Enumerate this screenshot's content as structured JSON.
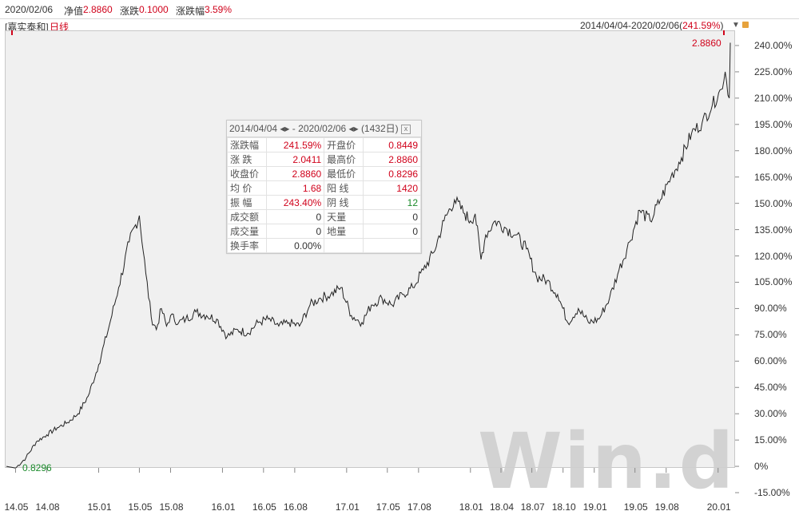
{
  "header": {
    "date": "2020/02/06",
    "nav_label": "净值",
    "nav_value": "2.8860",
    "change_label": "涨跌",
    "change_value": "0.1000",
    "pct_label": "涨跌幅",
    "pct_value": "3.59%"
  },
  "subheader": {
    "fund_name": "[嘉实泰和]",
    "period": "日线",
    "range_text": "2014/04/04-2020/02/06(",
    "range_pct": "241.59%",
    "range_close": ")"
  },
  "watermark": "Win.d",
  "popup": {
    "start": "2014/04/04",
    "end": "2020/02/06",
    "days": "(1432日)",
    "arrows": "◂▸",
    "dash": "-",
    "close_icon": "x",
    "rows": [
      {
        "l1": "涨跌幅",
        "v1": "241.59%",
        "c1": "red",
        "l2": "开盘价",
        "v2": "0.8449",
        "c2": "red"
      },
      {
        "l1": "涨 跌",
        "v1": "2.0411",
        "c1": "red",
        "l2": "最高价",
        "v2": "2.8860",
        "c2": "red"
      },
      {
        "l1": "收盘价",
        "v1": "2.8860",
        "c1": "red",
        "l2": "最低价",
        "v2": "0.8296",
        "c2": "red"
      },
      {
        "l1": "均 价",
        "v1": "1.68",
        "c1": "red",
        "l2": "阳 线",
        "v2": "1420",
        "c2": "red"
      },
      {
        "l1": "振 幅",
        "v1": "243.40%",
        "c1": "red",
        "l2": "阴 线",
        "v2": "12",
        "c2": "green"
      },
      {
        "l1": "成交额",
        "v1": "0",
        "c1": "plain",
        "l2": "天量",
        "v2": "0",
        "c2": "plain"
      },
      {
        "l1": "成交量",
        "v1": "0",
        "c1": "plain",
        "l2": "地量",
        "v2": "0",
        "c2": "plain"
      },
      {
        "l1": "换手率",
        "v1": "0.00%",
        "c1": "plain",
        "l2": "",
        "v2": "",
        "c2": "plain"
      }
    ]
  },
  "colors": {
    "up": "#d0021b",
    "down": "#1a8a2a",
    "line": "#222222",
    "plot_bg": "#f0f0f0"
  },
  "chart_data": {
    "type": "line",
    "title": "",
    "xlabel": "",
    "ylabel": "",
    "x_ticks": [
      "14.05",
      "14.08",
      "15.01",
      "15.05",
      "15.08",
      "16.01",
      "16.05",
      "16.08",
      "17.01",
      "17.05",
      "17.08",
      "18.01",
      "18.04",
      "18.07",
      "18.10",
      "19.01",
      "19.05",
      "19.08",
      "20.01"
    ],
    "y_ticks": [
      "240.00%",
      "225.00%",
      "210.00%",
      "195.00%",
      "180.00%",
      "165.00%",
      "150.00%",
      "135.00%",
      "120.00%",
      "105.00%",
      "90.00%",
      "75.00%",
      "60.00%",
      "45.00%",
      "30.00%",
      "15.00%",
      "0%",
      "-15.00%"
    ],
    "ylim": [
      -15,
      240
    ],
    "max_label": "2.8860",
    "min_label": "0.8296",
    "series": [
      {
        "x": [
          "2014-04-04",
          "2014-05-01",
          "2014-06-01",
          "2014-07-01",
          "2014-08-01",
          "2014-09-01",
          "2014-10-01",
          "2014-11-01",
          "2014-12-01",
          "2015-01-01",
          "2015-02-01",
          "2015-03-01",
          "2015-04-01",
          "2015-05-01",
          "2015-05-20",
          "2015-06-05",
          "2015-06-20",
          "2015-07-05",
          "2015-07-20",
          "2015-08-01",
          "2015-08-25",
          "2015-09-15",
          "2015-10-15",
          "2015-11-15",
          "2015-12-15",
          "2016-01-15",
          "2016-02-15",
          "2016-03-15",
          "2016-04-15",
          "2016-05-15",
          "2016-06-15",
          "2016-07-15",
          "2016-08-15",
          "2016-09-15",
          "2016-10-15",
          "2016-11-15",
          "2016-12-15",
          "2017-01-15",
          "2017-02-15",
          "2017-03-15",
          "2017-04-15",
          "2017-05-15",
          "2017-06-15",
          "2017-07-15",
          "2017-08-15",
          "2017-09-15",
          "2017-10-15",
          "2017-11-15",
          "2017-12-15",
          "2018-01-01",
          "2018-01-15",
          "2018-02-01",
          "2018-02-15",
          "2018-03-15",
          "2018-04-15",
          "2018-05-15",
          "2018-06-15",
          "2018-07-15",
          "2018-08-15",
          "2018-09-15",
          "2018-10-15",
          "2018-11-15",
          "2018-12-15",
          "2019-01-15",
          "2019-02-15",
          "2019-03-15",
          "2019-04-15",
          "2019-05-15",
          "2019-06-15",
          "2019-07-15",
          "2019-08-15",
          "2019-09-15",
          "2019-10-15",
          "2019-11-15",
          "2019-12-15",
          "2020-01-10",
          "2020-01-22",
          "2020-02-03",
          "2020-02-06"
        ],
        "y": [
          0,
          -1,
          5,
          14,
          18,
          22,
          25,
          30,
          40,
          58,
          80,
          102,
          128,
          143,
          110,
          85,
          78,
          90,
          80,
          86,
          82,
          84,
          88,
          86,
          84,
          74,
          78,
          76,
          82,
          84,
          80,
          82,
          80,
          92,
          96,
          98,
          102,
          86,
          82,
          92,
          96,
          92,
          98,
          102,
          112,
          122,
          140,
          152,
          144,
          140,
          144,
          118,
          132,
          140,
          136,
          132,
          124,
          108,
          106,
          98,
          82,
          90,
          82,
          84,
          96,
          112,
          128,
          146,
          140,
          152,
          165,
          176,
          190,
          196,
          206,
          215,
          225,
          210,
          241.59
        ]
      }
    ]
  }
}
